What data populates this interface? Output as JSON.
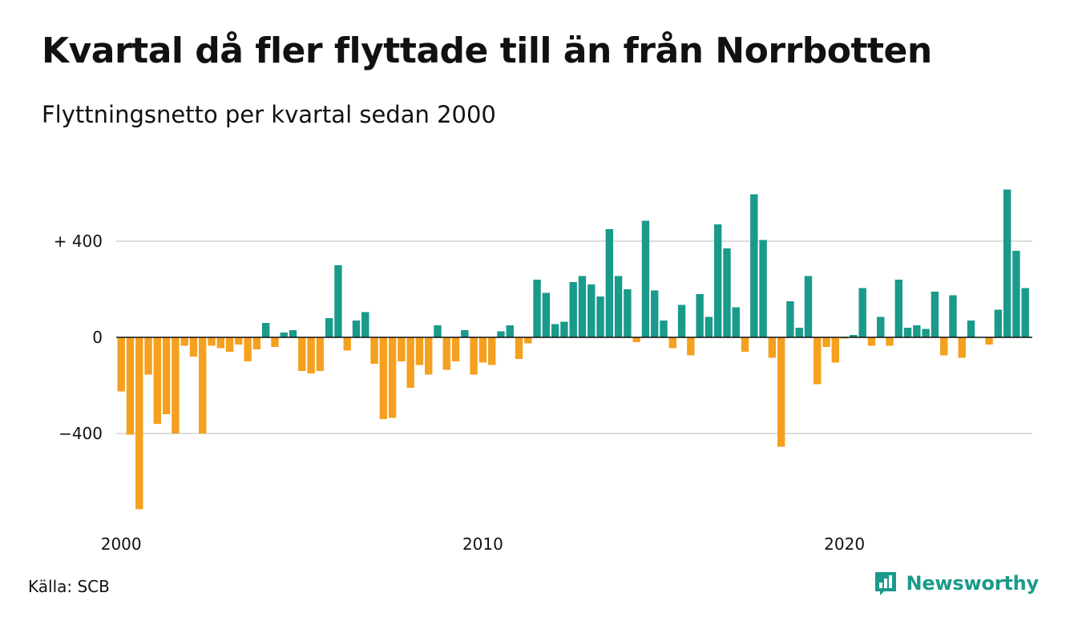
{
  "title": "Kvartal då fler flyttade till än från Norrbotten",
  "subtitle": "Flyttningsnetto per kvartal sedan 2000",
  "source": "Källa: SCB",
  "brand": "Newsworthy",
  "colors": {
    "positive": "#1a9a8a",
    "negative": "#f5a01f",
    "gridline": "#dddddd",
    "zeroline": "#111111"
  },
  "chart_data": {
    "type": "bar",
    "title": "Kvartal då fler flyttade till än från Norrbotten",
    "subtitle": "Flyttningsnetto per kvartal sedan 2000",
    "xlabel": "",
    "ylabel": "",
    "ylim": [
      -750,
      650
    ],
    "y_ticks": [
      {
        "value": 400,
        "label": "+ 400"
      },
      {
        "value": 0,
        "label": "0"
      },
      {
        "value": -400,
        "label": "−400"
      }
    ],
    "x_ticks": [
      {
        "index": 0,
        "label": "2000"
      },
      {
        "index": 40,
        "label": "2010"
      },
      {
        "index": 80,
        "label": "2020"
      }
    ],
    "grid": true,
    "start": "2000 Q1",
    "values": [
      -225,
      -405,
      -715,
      -155,
      -360,
      -320,
      -400,
      -35,
      -80,
      -400,
      -35,
      -45,
      -60,
      -30,
      -100,
      -50,
      60,
      -40,
      20,
      30,
      -140,
      -150,
      -140,
      80,
      300,
      -55,
      70,
      105,
      -110,
      -340,
      -335,
      -100,
      -210,
      -115,
      -155,
      50,
      -135,
      -100,
      30,
      -155,
      -105,
      -115,
      25,
      50,
      -90,
      -25,
      240,
      185,
      55,
      65,
      230,
      255,
      220,
      170,
      450,
      255,
      200,
      -20,
      485,
      195,
      70,
      -45,
      135,
      -75,
      180,
      85,
      470,
      370,
      125,
      -60,
      595,
      405,
      -85,
      -455,
      150,
      40,
      255,
      -195,
      -40,
      -105,
      -5,
      10,
      205,
      -35,
      85,
      -35,
      240,
      40,
      50,
      35,
      190,
      -75,
      175,
      -85,
      70,
      0,
      -30,
      115,
      615,
      360,
      205
    ]
  }
}
